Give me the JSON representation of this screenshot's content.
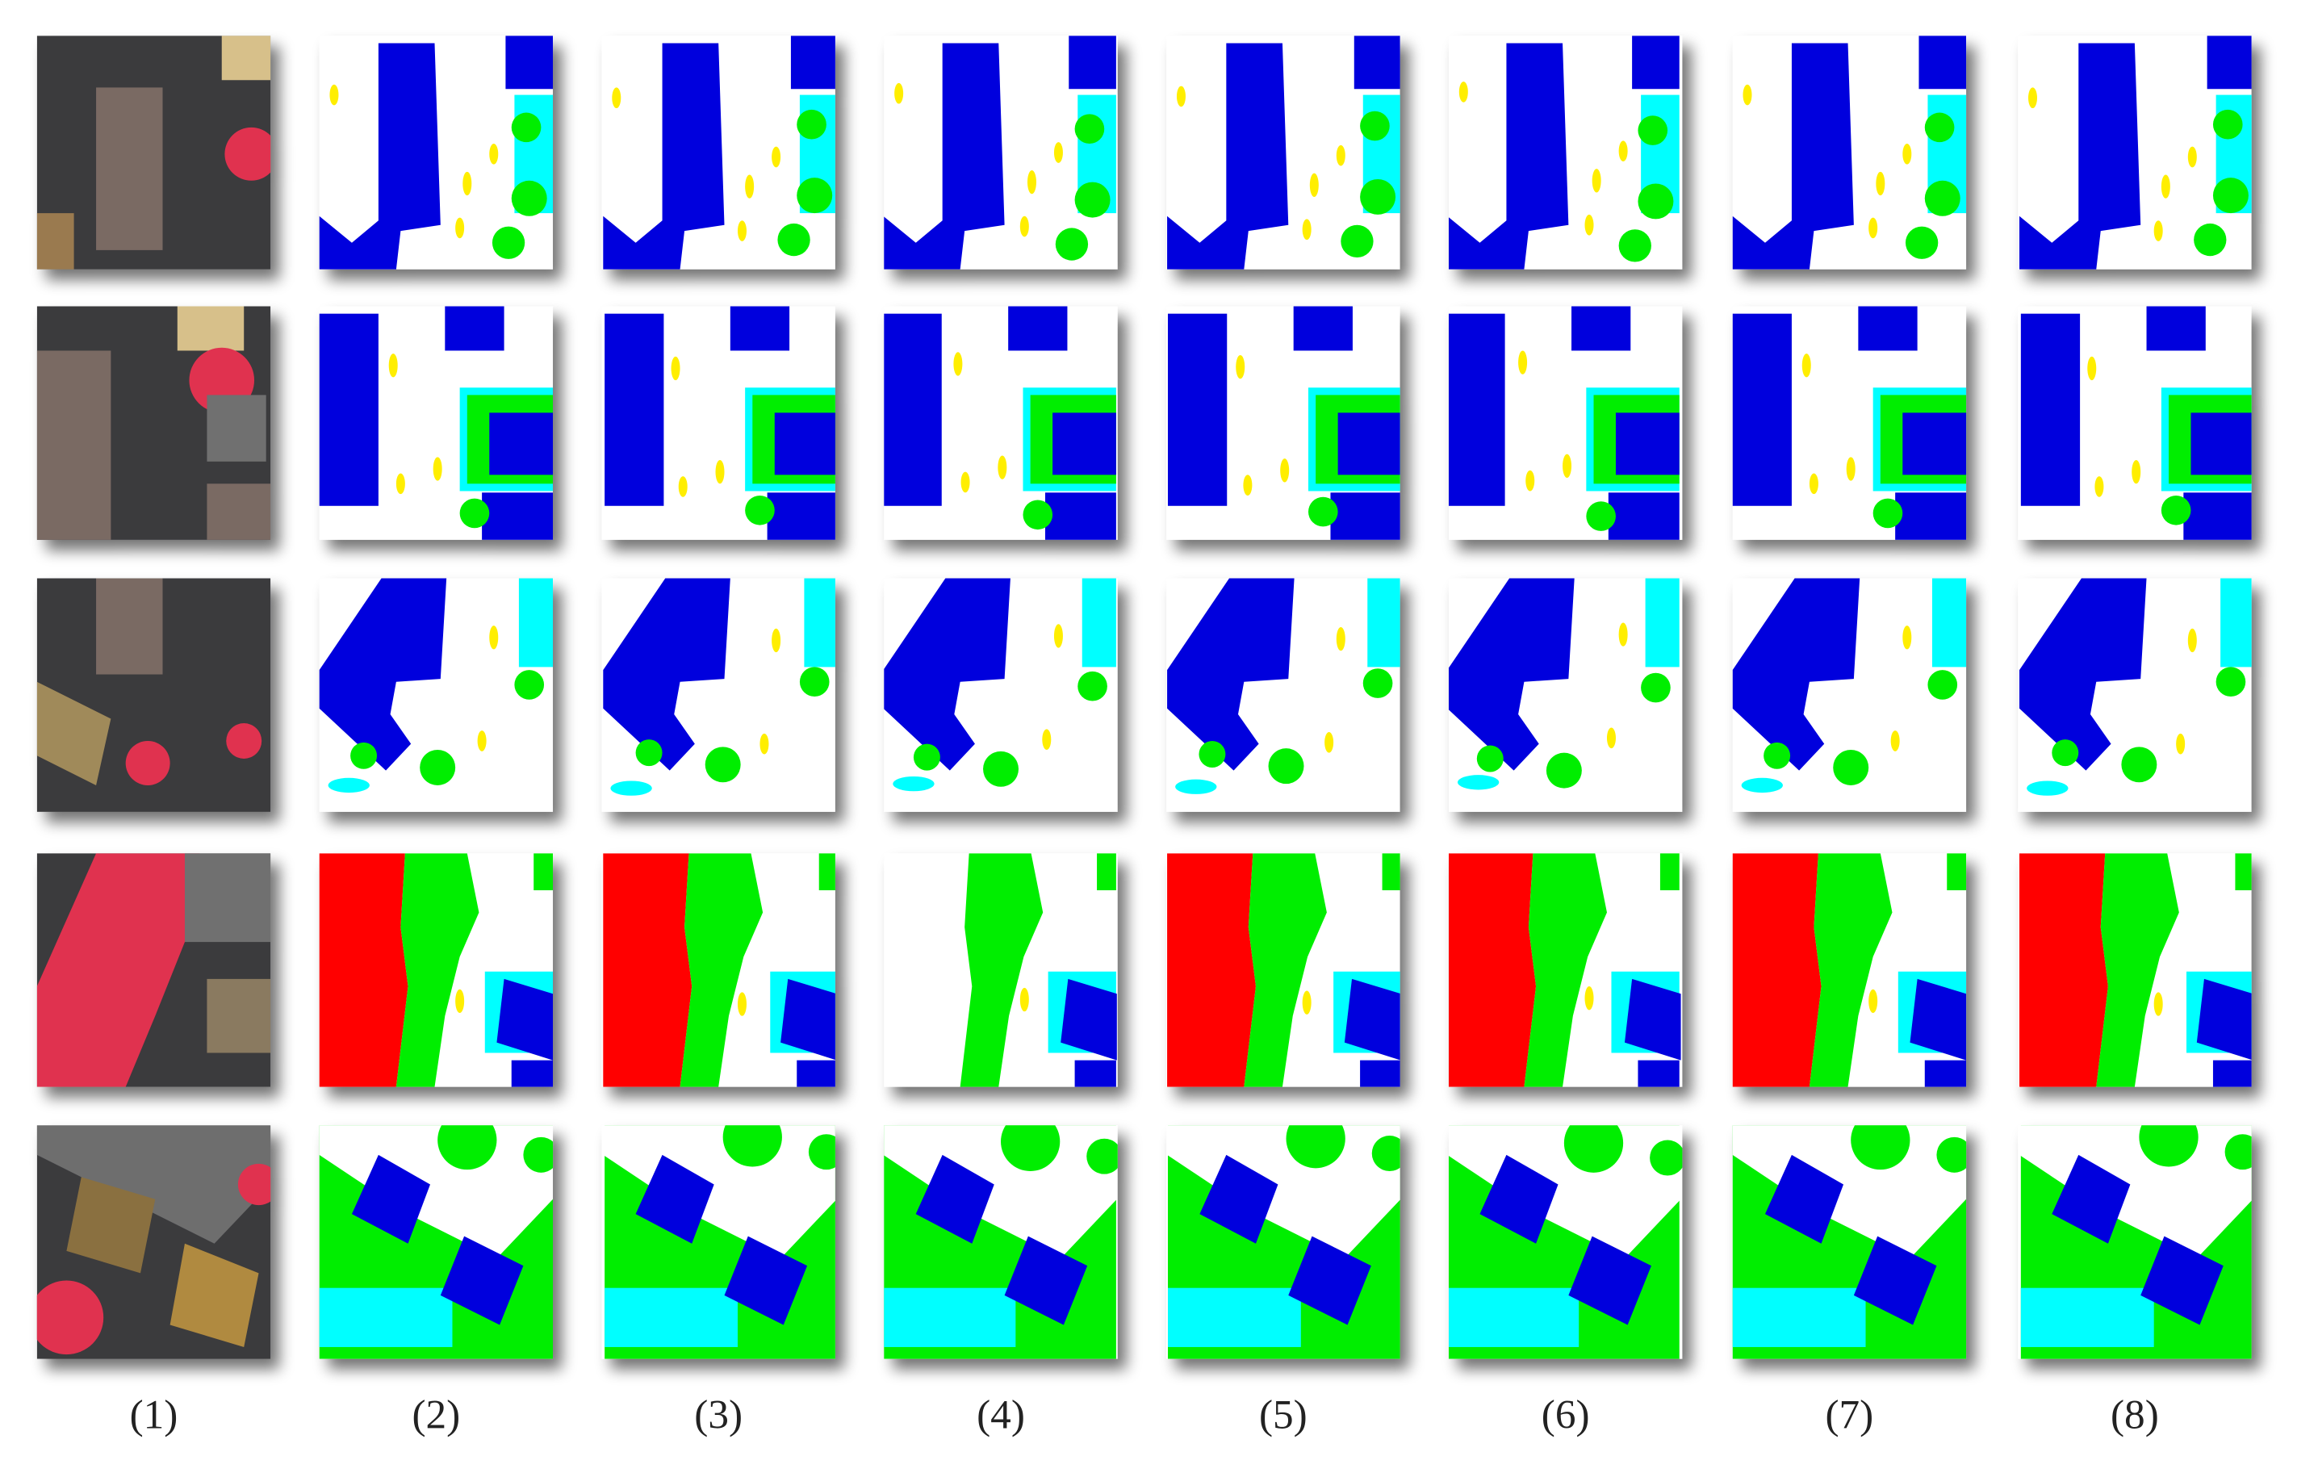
{
  "columns": [
    {
      "label": "(1)"
    },
    {
      "label": "(2)"
    },
    {
      "label": "(3)"
    },
    {
      "label": "(4)"
    },
    {
      "label": "(5)"
    },
    {
      "label": "(6)"
    },
    {
      "label": "(7)"
    },
    {
      "label": "(8)"
    }
  ]
}
